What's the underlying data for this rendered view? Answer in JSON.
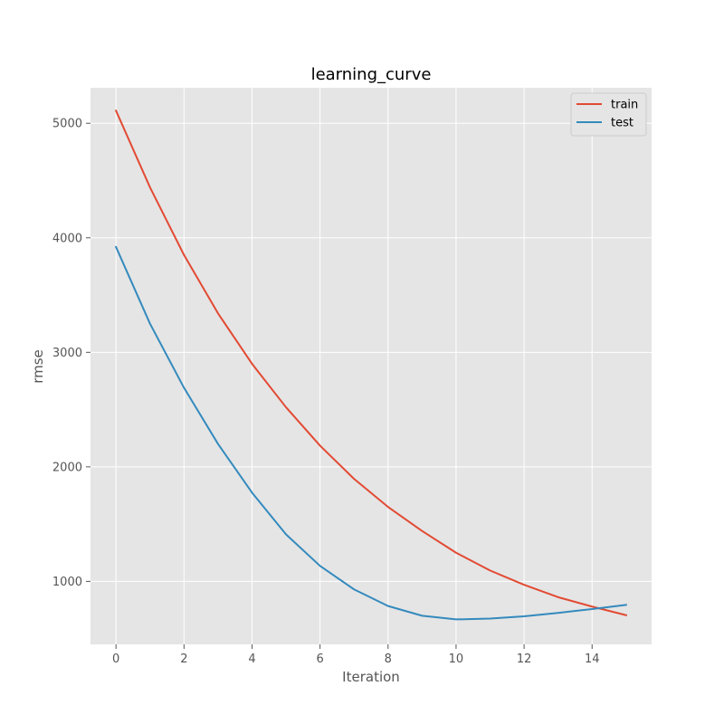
{
  "chart_data": {
    "type": "line",
    "title": "learning_curve",
    "xlabel": "Iteration",
    "ylabel": "rmse",
    "xlim": [
      -0.75,
      15.75
    ],
    "ylim": [
      450,
      5310
    ],
    "xticks": [
      0,
      2,
      4,
      6,
      8,
      10,
      12,
      14
    ],
    "yticks": [
      1000,
      2000,
      3000,
      4000,
      5000
    ],
    "grid": true,
    "legend_position": "top-right",
    "x": [
      0,
      1,
      2,
      3,
      4,
      5,
      6,
      7,
      8,
      9,
      10,
      11,
      12,
      13,
      14,
      15
    ],
    "series": [
      {
        "name": "train",
        "color": "#E24A33",
        "values": [
          5110,
          4440,
          3850,
          3340,
          2900,
          2520,
          2185,
          1895,
          1650,
          1440,
          1250,
          1095,
          970,
          862,
          780,
          705
        ]
      },
      {
        "name": "test",
        "color": "#348ABD",
        "values": [
          3920,
          3250,
          2690,
          2200,
          1775,
          1410,
          1135,
          930,
          785,
          700,
          668,
          675,
          695,
          725,
          758,
          795
        ]
      }
    ]
  }
}
